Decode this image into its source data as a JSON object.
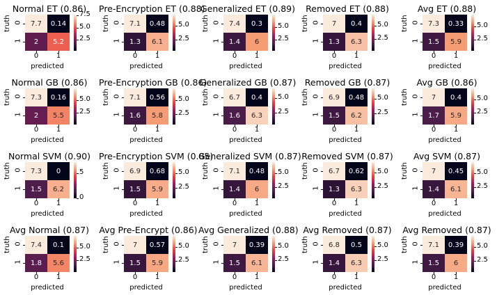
{
  "figure": {
    "row_labels": [
      "0",
      "1"
    ],
    "col_labels": [
      "0",
      "1"
    ],
    "xlabel": "predicted",
    "ylabel": "truth"
  },
  "chart_data": [
    {
      "type": "heatmap",
      "title": "Normal ET (0.86)",
      "values": [
        [
          7.7,
          0.14
        ],
        [
          2,
          5.2
        ]
      ],
      "vmin": 0.14,
      "vmax": 7.7,
      "colorbar_ticks": [
        7.5,
        5.0,
        2.5
      ]
    },
    {
      "type": "heatmap",
      "title": "Pre-Encryption ET (0.88)",
      "values": [
        [
          7.1,
          0.48
        ],
        [
          1.3,
          6.1
        ]
      ],
      "vmin": 0.48,
      "vmax": 7.1,
      "colorbar_ticks": [
        5.0,
        2.5
      ]
    },
    {
      "type": "heatmap",
      "title": "Generalized ET (0.89)",
      "values": [
        [
          7.4,
          0.3
        ],
        [
          1.4,
          6
        ]
      ],
      "vmin": 0.3,
      "vmax": 7.4,
      "colorbar_ticks": [
        5.0,
        2.5
      ]
    },
    {
      "type": "heatmap",
      "title": "Removed ET (0.88)",
      "values": [
        [
          7,
          0.4
        ],
        [
          1.3,
          6.3
        ]
      ],
      "vmin": 0.4,
      "vmax": 7,
      "colorbar_ticks": [
        5.0,
        2.5
      ]
    },
    {
      "type": "heatmap",
      "title": "Avg ET (0.88)",
      "values": [
        [
          7.3,
          0.33
        ],
        [
          1.5,
          5.9
        ]
      ],
      "vmin": 0.33,
      "vmax": 7.3,
      "colorbar_ticks": [
        5.0,
        2.5
      ]
    },
    {
      "type": "heatmap",
      "title": "Normal GB (0.86)",
      "values": [
        [
          7.3,
          0.16
        ],
        [
          2,
          5.5
        ]
      ],
      "vmin": 0.16,
      "vmax": 7.3,
      "colorbar_ticks": [
        5.0,
        2.5
      ]
    },
    {
      "type": "heatmap",
      "title": "Pre-Encryption GB (0.86)",
      "values": [
        [
          7.1,
          0.56
        ],
        [
          1.6,
          5.8
        ]
      ],
      "vmin": 0.56,
      "vmax": 7.1,
      "colorbar_ticks": [
        5.0,
        2.5
      ]
    },
    {
      "type": "heatmap",
      "title": "Generalized GB (0.87)",
      "values": [
        [
          6.7,
          0.4
        ],
        [
          1.6,
          6.3
        ]
      ],
      "vmin": 0.4,
      "vmax": 6.7,
      "colorbar_ticks": [
        5.0,
        2.5
      ]
    },
    {
      "type": "heatmap",
      "title": "Removed GB (0.87)",
      "values": [
        [
          6.9,
          0.48
        ],
        [
          1.5,
          6.2
        ]
      ],
      "vmin": 0.48,
      "vmax": 6.9,
      "colorbar_ticks": [
        5.0,
        2.5
      ]
    },
    {
      "type": "heatmap",
      "title": "Avg GB (0.86)",
      "values": [
        [
          7,
          0.4
        ],
        [
          1.7,
          5.9
        ]
      ],
      "vmin": 0.4,
      "vmax": 7,
      "colorbar_ticks": [
        5.0,
        2.5
      ]
    },
    {
      "type": "heatmap",
      "title": "Normal SVM (0.90)",
      "values": [
        [
          7.3,
          0
        ],
        [
          1.5,
          6.2
        ]
      ],
      "vmin": 0,
      "vmax": 7.3,
      "colorbar_ticks": [
        5,
        0
      ]
    },
    {
      "type": "heatmap",
      "title": "Pre-Encryption SVM (0.85)",
      "values": [
        [
          6.9,
          0.68
        ],
        [
          1.5,
          5.9
        ]
      ],
      "vmin": 0.68,
      "vmax": 6.9,
      "colorbar_ticks": [
        5.0,
        2.5
      ]
    },
    {
      "type": "heatmap",
      "title": "Generalized SVM (0.87)",
      "values": [
        [
          7.1,
          0.48
        ],
        [
          1.4,
          6
        ]
      ],
      "vmin": 0.48,
      "vmax": 7.1,
      "colorbar_ticks": [
        5.0,
        2.5
      ]
    },
    {
      "type": "heatmap",
      "title": "Removed SVM (0.87)",
      "values": [
        [
          6.7,
          0.62
        ],
        [
          1.3,
          6.3
        ]
      ],
      "vmin": 0.62,
      "vmax": 6.7,
      "colorbar_ticks": [
        5.0,
        2.5
      ]
    },
    {
      "type": "heatmap",
      "title": "Avg SVM (0.87)",
      "values": [
        [
          7,
          0.45
        ],
        [
          1.4,
          6.1
        ]
      ],
      "vmin": 0.45,
      "vmax": 7,
      "colorbar_ticks": [
        5.0,
        2.5
      ]
    },
    {
      "type": "heatmap",
      "title": "Avg Normal (0.87)",
      "values": [
        [
          7.4,
          0.1
        ],
        [
          1.8,
          5.6
        ]
      ],
      "vmin": 0.1,
      "vmax": 7.4,
      "colorbar_ticks": [
        5.0,
        2.5
      ]
    },
    {
      "type": "heatmap",
      "title": "Avg Pre-Encrypt (0.86)",
      "values": [
        [
          7,
          0.57
        ],
        [
          1.5,
          5.9
        ]
      ],
      "vmin": 0.57,
      "vmax": 7,
      "colorbar_ticks": [
        5.0,
        2.5
      ]
    },
    {
      "type": "heatmap",
      "title": "Avg Generalized (0.88)",
      "values": [
        [
          7,
          0.39
        ],
        [
          1.5,
          6.1
        ]
      ],
      "vmin": 0.39,
      "vmax": 7,
      "colorbar_ticks": [
        5.0,
        2.5
      ]
    },
    {
      "type": "heatmap",
      "title": "Avg Removed (0.87)",
      "values": [
        [
          6.8,
          0.5
        ],
        [
          1.4,
          6.3
        ]
      ],
      "vmin": 0.5,
      "vmax": 6.8,
      "colorbar_ticks": [
        5.0,
        2.5
      ]
    },
    {
      "type": "heatmap",
      "title": "Avg Removed (0.87)",
      "values": [
        [
          7.1,
          0.39
        ],
        [
          1.5,
          6
        ]
      ],
      "vmin": 0.39,
      "vmax": 7.1,
      "colorbar_ticks": [
        5.0,
        2.5
      ]
    }
  ],
  "colormap": {
    "name": "rocket",
    "stops": [
      "#03051a",
      "#4c1d4b",
      "#a11a5b",
      "#e83f3f",
      "#f69c73",
      "#faebdd"
    ]
  }
}
